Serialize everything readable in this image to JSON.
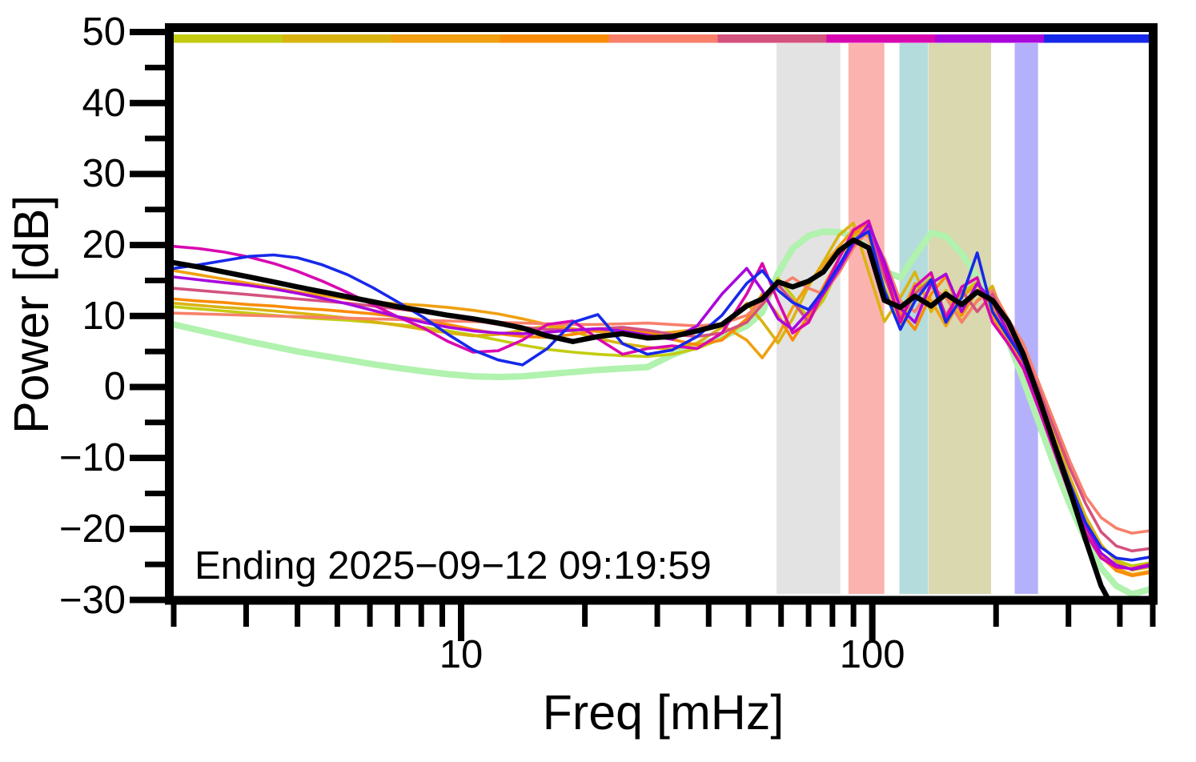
{
  "figure": {
    "background": "#ffffff",
    "annotation": "Ending 2025−09−12 09:19:59"
  },
  "axes": {
    "x": {
      "label": "Freq [mHz]",
      "scale": "log",
      "min": 2,
      "max": 481,
      "major_ticks": [
        10,
        100
      ],
      "major_tick_labels": [
        "10",
        "100"
      ],
      "minor_ticks": [
        2,
        3,
        4,
        5,
        6,
        7,
        8,
        9,
        20,
        30,
        40,
        50,
        60,
        70,
        80,
        90,
        200,
        300,
        400,
        481
      ]
    },
    "y": {
      "label": "Power [dB]",
      "scale": "linear",
      "min": -30,
      "max": 50,
      "major_ticks": [
        50,
        40,
        30,
        20,
        10,
        0,
        -10,
        -20,
        -30
      ],
      "major_tick_labels": [
        "50",
        "40",
        "30",
        "20",
        "10",
        "0",
        "−10",
        "−20",
        "−30"
      ],
      "minor_tick_step": 5
    }
  },
  "time_colorbar": {
    "description": "time-ordered spectra colorbar, oldest (left) to newest (right)",
    "colors": [
      "#c3cc11",
      "#d9b411",
      "#f0a011",
      "#f98c07",
      "#f8806b",
      "#d4527e",
      "#d907b0",
      "#a907dc",
      "#1629ea"
    ]
  },
  "highlight_bands": [
    {
      "name": "gray",
      "color": "#e3e3e3",
      "f_start": 58.5,
      "f_stop": 83.6
    },
    {
      "name": "pink",
      "color": "#fbb3b0",
      "f_start": 87.5,
      "f_stop": 107.0
    },
    {
      "name": "teal",
      "color": "#b4dcdc",
      "f_start": 116.4,
      "f_stop": 136.7
    },
    {
      "name": "olive",
      "color": "#d9d8af",
      "f_start": 137.0,
      "f_stop": 194.5
    },
    {
      "name": "periwinkle",
      "color": "#b5b0fb",
      "f_start": 222.0,
      "f_stop": 253.0
    }
  ],
  "chart_data": {
    "type": "line",
    "title": "",
    "xlabel": "Freq [mHz]",
    "ylabel": "Power [dB]",
    "xlim": [
      2,
      481
    ],
    "ylim": [
      -30,
      50
    ],
    "x_units": "mHz",
    "y_units": "dB",
    "grid": false,
    "legend": "none",
    "x": [
      2.0,
      2.3,
      2.65,
      3.05,
      3.5,
      4.0,
      4.6,
      5.3,
      6.1,
      7.0,
      8.1,
      9.3,
      10.7,
      12.3,
      14.1,
      16.2,
      18.7,
      21.5,
      24.7,
      28.4,
      32.6,
      37.5,
      43.1,
      49.5,
      54,
      59,
      64,
      70,
      76,
      83,
      90,
      98,
      107,
      117,
      127,
      139,
      151,
      165,
      180,
      196,
      214,
      233,
      254,
      277,
      302,
      330,
      360,
      392,
      428,
      481
    ],
    "series": [
      {
        "name": "reference",
        "color": "#b0f2ae",
        "width": 8,
        "values": [
          8.8,
          8.0,
          7.2,
          6.4,
          5.7,
          5.0,
          4.4,
          3.8,
          3.2,
          2.7,
          2.2,
          1.8,
          1.5,
          1.4,
          1.5,
          1.8,
          2.1,
          2.4,
          2.6,
          2.8,
          4.5,
          5.8,
          7.0,
          8.6,
          10.5,
          16.0,
          19.5,
          21.3,
          21.9,
          21.8,
          21.3,
          19.5,
          16.3,
          15.4,
          18.5,
          21.7,
          21.2,
          18.8,
          15.5,
          11.5,
          6.5,
          1.0,
          -5.0,
          -11.0,
          -16.5,
          -21.5,
          -25.5,
          -28.0,
          -29.2,
          -28.4
        ]
      },
      {
        "name": "spectrum-1-oldest",
        "color": "#c3cc11",
        "width": 3.6,
        "values": [
          11.3,
          11.0,
          10.7,
          10.4,
          10.1,
          9.8,
          9.6,
          9.4,
          9.1,
          8.8,
          8.4,
          7.9,
          7.3,
          6.6,
          5.9,
          5.3,
          4.9,
          4.6,
          4.4,
          4.3,
          4.6,
          5.4,
          6.8,
          9.2,
          12.2,
          15.3,
          12.8,
          9.6,
          12.2,
          16.8,
          21.2,
          22.4,
          14.2,
          8.6,
          13.4,
          15.4,
          9.6,
          13.2,
          14.8,
          10.2,
          7.4,
          3.8,
          -1.4,
          -7.2,
          -13.2,
          -18.6,
          -22.4,
          -24.4,
          -25.2,
          -24.7
        ]
      },
      {
        "name": "spectrum-2",
        "color": "#d9b411",
        "width": 3.6,
        "values": [
          11.8,
          11.5,
          11.2,
          11.0,
          10.7,
          10.4,
          10.1,
          9.7,
          9.2,
          8.7,
          8.1,
          7.6,
          7.2,
          7.4,
          8.0,
          8.6,
          7.8,
          6.8,
          6.1,
          5.6,
          5.3,
          6.2,
          8.4,
          11.8,
          9.2,
          6.2,
          9.6,
          14.2,
          17.6,
          21.4,
          23.1,
          16.2,
          9.2,
          12.6,
          16.2,
          10.6,
          13.6,
          9.2,
          12.2,
          14.2,
          8.2,
          4.4,
          -0.8,
          -6.6,
          -12.6,
          -18.2,
          -22.2,
          -24.6,
          -25.8,
          -25.3
        ]
      },
      {
        "name": "spectrum-3",
        "color": "#f0a011",
        "width": 3.6,
        "values": [
          16.4,
          15.8,
          15.2,
          14.6,
          14.0,
          13.4,
          12.9,
          12.4,
          12.0,
          11.7,
          11.5,
          11.2,
          10.8,
          10.3,
          9.6,
          8.8,
          8.2,
          7.8,
          7.6,
          7.5,
          7.7,
          8.1,
          8.7,
          6.6,
          4.1,
          7.2,
          11.2,
          14.6,
          17.2,
          19.8,
          22.2,
          21.2,
          13.2,
          10.2,
          14.6,
          12.2,
          8.6,
          12.6,
          14.6,
          9.8,
          6.6,
          3.4,
          -2.2,
          -8.2,
          -14.2,
          -19.8,
          -23.6,
          -25.6,
          -26.4,
          -25.9
        ]
      },
      {
        "name": "spectrum-4",
        "color": "#f98c07",
        "width": 3.6,
        "values": [
          12.4,
          12.1,
          11.9,
          11.6,
          11.4,
          11.1,
          10.9,
          10.6,
          10.3,
          9.9,
          9.4,
          8.8,
          8.1,
          7.5,
          7.1,
          7.0,
          7.4,
          8.0,
          8.3,
          7.7,
          6.7,
          5.9,
          6.6,
          9.6,
          13.1,
          10.1,
          6.6,
          10.1,
          14.1,
          18.1,
          21.6,
          23.2,
          17.1,
          10.6,
          8.1,
          13.1,
          15.6,
          10.1,
          13.6,
          11.6,
          7.1,
          3.1,
          -2.6,
          -8.6,
          -14.6,
          -20.1,
          -23.9,
          -25.9,
          -26.6,
          -26.1
        ]
      },
      {
        "name": "spectrum-5",
        "color": "#f8806b",
        "width": 3.6,
        "values": [
          10.4,
          10.3,
          10.2,
          10.1,
          10.0,
          9.9,
          9.8,
          9.7,
          9.6,
          9.5,
          9.4,
          9.3,
          9.2,
          9.1,
          9.0,
          8.9,
          8.8,
          8.8,
          8.9,
          9.0,
          8.8,
          8.6,
          8.9,
          10.1,
          12.1,
          14.1,
          15.4,
          13.9,
          13.1,
          16.1,
          19.6,
          22.1,
          18.1,
          12.1,
          10.6,
          14.1,
          12.6,
          9.1,
          12.1,
          13.6,
          9.6,
          6.1,
          0.6,
          -4.9,
          -10.4,
          -15.4,
          -18.4,
          -19.9,
          -20.6,
          -20.2
        ]
      },
      {
        "name": "spectrum-6",
        "color": "#d4527e",
        "width": 3.6,
        "values": [
          13.9,
          13.6,
          13.3,
          13.0,
          12.7,
          12.4,
          12.1,
          11.8,
          11.4,
          11.0,
          10.5,
          10.0,
          9.4,
          8.8,
          8.4,
          8.1,
          8.0,
          8.2,
          8.4,
          8.0,
          7.4,
          7.1,
          7.6,
          9.1,
          11.6,
          14.4,
          12.1,
          9.1,
          13.1,
          17.1,
          20.6,
          22.4,
          15.6,
          9.6,
          13.1,
          15.1,
          10.1,
          13.6,
          10.6,
          13.1,
          8.6,
          5.1,
          -0.4,
          -5.9,
          -11.4,
          -16.4,
          -20.4,
          -22.4,
          -23.1,
          -22.7
        ]
      },
      {
        "name": "spectrum-7",
        "color": "#d907b0",
        "width": 3.6,
        "values": [
          19.8,
          19.5,
          19.0,
          18.3,
          17.4,
          16.3,
          14.9,
          13.3,
          11.6,
          9.9,
          8.3,
          6.4,
          4.9,
          5.1,
          6.6,
          8.8,
          9.3,
          6.8,
          4.6,
          5.4,
          5.8,
          5.4,
          7.6,
          13.1,
          17.4,
          12.1,
          7.6,
          9.1,
          13.6,
          18.1,
          22.1,
          23.4,
          16.6,
          9.1,
          14.1,
          16.1,
          9.6,
          14.1,
          15.4,
          9.1,
          6.1,
          2.6,
          -3.1,
          -9.1,
          -15.1,
          -20.6,
          -24.1,
          -25.4,
          -25.6,
          -24.9
        ]
      },
      {
        "name": "spectrum-8",
        "color": "#a907dc",
        "width": 3.6,
        "values": [
          15.5,
          15.1,
          14.7,
          14.3,
          13.8,
          13.2,
          12.5,
          11.7,
          10.8,
          9.9,
          9.1,
          8.4,
          7.9,
          7.6,
          7.5,
          7.7,
          8.0,
          8.2,
          7.9,
          7.3,
          6.7,
          8.6,
          13.1,
          16.7,
          13.6,
          9.6,
          8.1,
          10.6,
          13.1,
          16.6,
          20.1,
          22.9,
          17.6,
          11.1,
          9.1,
          14.6,
          15.9,
          10.6,
          14.6,
          12.1,
          7.6,
          3.6,
          -2.1,
          -8.1,
          -14.1,
          -19.6,
          -23.4,
          -25.1,
          -25.7,
          -25.1
        ]
      },
      {
        "name": "spectrum-9-newest",
        "color": "#1629ea",
        "width": 3.6,
        "values": [
          16.7,
          17.2,
          17.8,
          18.4,
          18.6,
          18.2,
          17.2,
          15.8,
          14.0,
          12.0,
          9.8,
          7.4,
          5.2,
          3.8,
          3.1,
          5.4,
          9.1,
          10.2,
          6.1,
          4.6,
          5.2,
          7.1,
          10.1,
          14.6,
          16.4,
          13.6,
          11.9,
          10.9,
          13.6,
          17.1,
          20.6,
          21.9,
          13.6,
          8.1,
          12.1,
          15.1,
          9.1,
          12.6,
          18.9,
          10.6,
          7.1,
          3.9,
          -1.6,
          -7.6,
          -13.6,
          -19.1,
          -22.6,
          -24.1,
          -24.4,
          -23.9
        ]
      },
      {
        "name": "median-current",
        "color": "#000000",
        "width": 6.5,
        "values": [
          17.5,
          16.9,
          16.2,
          15.5,
          14.8,
          14.1,
          13.4,
          12.7,
          12.0,
          11.3,
          10.7,
          10.1,
          9.6,
          9.0,
          8.3,
          7.2,
          6.4,
          7.1,
          7.5,
          6.9,
          7.1,
          7.9,
          8.8,
          11.4,
          12.4,
          14.8,
          14.1,
          14.9,
          16.2,
          19.2,
          20.7,
          19.6,
          12.2,
          11.2,
          12.8,
          11.4,
          13.1,
          11.6,
          13.4,
          12.2,
          9.2,
          4.6,
          -1.5,
          -8.0,
          -14.5,
          -21.5,
          -28.0,
          -32.0,
          -33.0,
          -33.0
        ]
      }
    ]
  }
}
